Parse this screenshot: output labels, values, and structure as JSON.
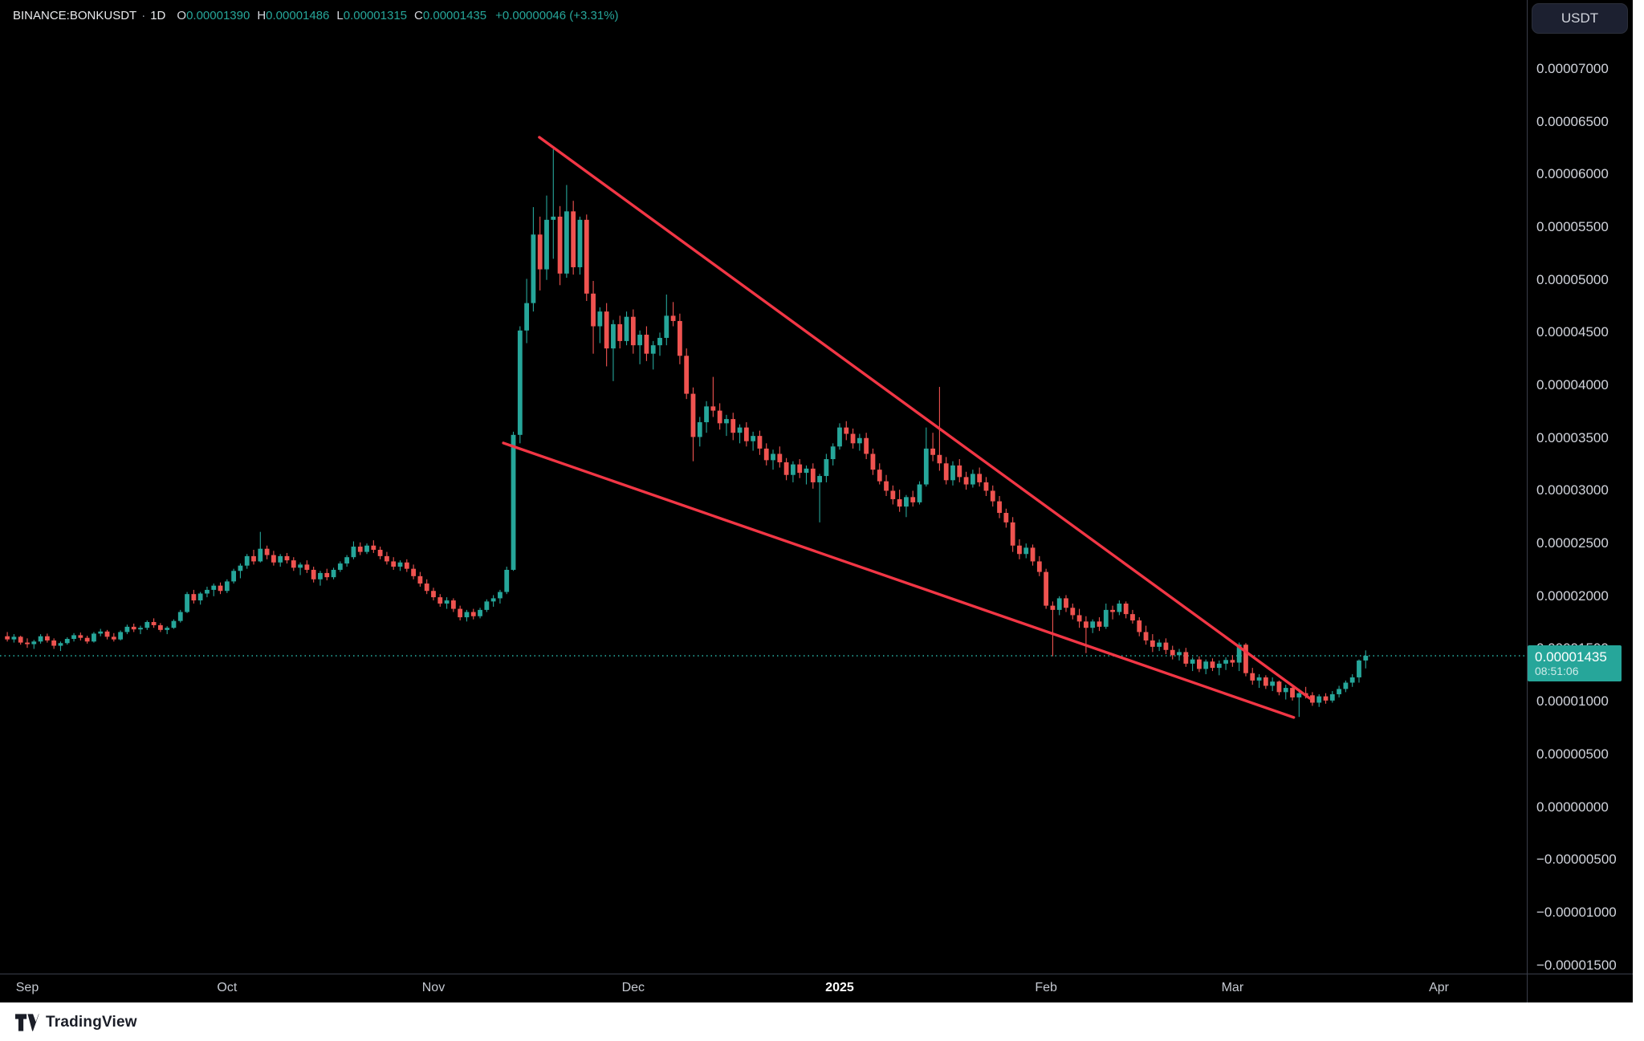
{
  "header": {
    "symbol": "BINANCE:BONKUSDT",
    "separator": "·",
    "timeframe": "1D",
    "ohlc": [
      {
        "label": "O",
        "value": "0.00001390"
      },
      {
        "label": "H",
        "value": "0.00001486"
      },
      {
        "label": "L",
        "value": "0.00001315"
      },
      {
        "label": "C",
        "value": "0.00001435"
      }
    ],
    "change": "+0.00000046 (+3.31%)"
  },
  "toolbar": {
    "currency_button": "USDT"
  },
  "price_label": {
    "price": "0.00001435",
    "countdown": "08:51:06"
  },
  "footer": {
    "logo_text": "TradingView"
  },
  "colors": {
    "up": "#26a69a",
    "down": "#ef5350",
    "trendline": "#f23645",
    "current_price_line": "#26a69a",
    "axis_text": "#d1d4dc",
    "background": "#000000"
  },
  "chart_data": {
    "type": "candlestick",
    "title": "BINANCE:BONKUSDT 1D",
    "ylabel": "Price (USDT)",
    "value_scale_note": "candle values are price * 1e8",
    "y_axis": {
      "min": -1500,
      "max": 7000,
      "tick_step": 500,
      "grid": false
    },
    "y_tick_values": [
      7000,
      6500,
      6000,
      5500,
      5000,
      4500,
      4000,
      3500,
      3000,
      2500,
      2000,
      1500,
      1000,
      500,
      0,
      -500,
      -1000,
      -1500
    ],
    "current_price": 1435,
    "x_ticks": [
      {
        "label": "Sep",
        "index": 3,
        "bold": false
      },
      {
        "label": "Oct",
        "index": 33,
        "bold": false
      },
      {
        "label": "Nov",
        "index": 64,
        "bold": false
      },
      {
        "label": "Dec",
        "index": 94,
        "bold": false
      },
      {
        "label": "2025",
        "index": 125,
        "bold": true
      },
      {
        "label": "Feb",
        "index": 156,
        "bold": false
      },
      {
        "label": "Mar",
        "index": 184,
        "bold": false
      },
      {
        "label": "Apr",
        "index": 215,
        "bold": false
      }
    ],
    "trendlines": [
      {
        "i1": 79.9,
        "p1": 6353,
        "i2": 195.6,
        "p2": 1032
      },
      {
        "i1": 74.5,
        "p1": 3453,
        "i2": 193.2,
        "p2": 850
      }
    ],
    "start_date": "2024-08-29",
    "candles": [
      [
        1620,
        1660,
        1570,
        1590
      ],
      [
        1590,
        1640,
        1560,
        1615
      ],
      [
        1615,
        1625,
        1540,
        1560
      ],
      [
        1560,
        1600,
        1510,
        1545
      ],
      [
        1545,
        1585,
        1500,
        1570
      ],
      [
        1570,
        1640,
        1550,
        1620
      ],
      [
        1620,
        1645,
        1560,
        1580
      ],
      [
        1580,
        1600,
        1500,
        1530
      ],
      [
        1530,
        1570,
        1480,
        1555
      ],
      [
        1555,
        1610,
        1540,
        1595
      ],
      [
        1595,
        1650,
        1570,
        1630
      ],
      [
        1630,
        1655,
        1580,
        1605
      ],
      [
        1605,
        1625,
        1550,
        1570
      ],
      [
        1570,
        1660,
        1560,
        1645
      ],
      [
        1645,
        1690,
        1620,
        1665
      ],
      [
        1665,
        1680,
        1590,
        1615
      ],
      [
        1615,
        1650,
        1570,
        1590
      ],
      [
        1590,
        1675,
        1580,
        1660
      ],
      [
        1660,
        1730,
        1640,
        1710
      ],
      [
        1710,
        1740,
        1660,
        1685
      ],
      [
        1685,
        1720,
        1640,
        1700
      ],
      [
        1700,
        1770,
        1680,
        1755
      ],
      [
        1755,
        1790,
        1700,
        1725
      ],
      [
        1725,
        1745,
        1660,
        1680
      ],
      [
        1680,
        1715,
        1640,
        1700
      ],
      [
        1700,
        1780,
        1690,
        1765
      ],
      [
        1765,
        1870,
        1750,
        1850
      ],
      [
        1850,
        2040,
        1840,
        2020
      ],
      [
        2020,
        2060,
        1930,
        1960
      ],
      [
        1960,
        2040,
        1920,
        2025
      ],
      [
        2025,
        2090,
        1990,
        2060
      ],
      [
        2060,
        2120,
        2000,
        2100
      ],
      [
        2100,
        2130,
        2020,
        2050
      ],
      [
        2050,
        2160,
        2030,
        2140
      ],
      [
        2140,
        2260,
        2120,
        2240
      ],
      [
        2240,
        2310,
        2170,
        2290
      ],
      [
        2290,
        2400,
        2260,
        2380
      ],
      [
        2380,
        2440,
        2300,
        2330
      ],
      [
        2330,
        2610,
        2320,
        2450
      ],
      [
        2450,
        2480,
        2350,
        2390
      ],
      [
        2390,
        2430,
        2290,
        2320
      ],
      [
        2320,
        2400,
        2280,
        2380
      ],
      [
        2380,
        2410,
        2310,
        2340
      ],
      [
        2340,
        2370,
        2240,
        2270
      ],
      [
        2270,
        2320,
        2200,
        2300
      ],
      [
        2300,
        2340,
        2220,
        2250
      ],
      [
        2250,
        2280,
        2130,
        2160
      ],
      [
        2160,
        2240,
        2100,
        2220
      ],
      [
        2220,
        2260,
        2150,
        2180
      ],
      [
        2180,
        2270,
        2160,
        2250
      ],
      [
        2250,
        2330,
        2230,
        2310
      ],
      [
        2310,
        2390,
        2280,
        2370
      ],
      [
        2370,
        2520,
        2350,
        2470
      ],
      [
        2470,
        2510,
        2390,
        2420
      ],
      [
        2420,
        2500,
        2400,
        2480
      ],
      [
        2480,
        2530,
        2410,
        2440
      ],
      [
        2440,
        2470,
        2350,
        2380
      ],
      [
        2380,
        2420,
        2300,
        2330
      ],
      [
        2330,
        2370,
        2250,
        2280
      ],
      [
        2280,
        2340,
        2240,
        2320
      ],
      [
        2320,
        2350,
        2230,
        2260
      ],
      [
        2260,
        2300,
        2160,
        2190
      ],
      [
        2190,
        2230,
        2090,
        2120
      ],
      [
        2120,
        2160,
        2020,
        2050
      ],
      [
        2050,
        2080,
        1960,
        1990
      ],
      [
        1990,
        2020,
        1900,
        1930
      ],
      [
        1930,
        1990,
        1880,
        1960
      ],
      [
        1960,
        1980,
        1850,
        1880
      ],
      [
        1880,
        1910,
        1770,
        1800
      ],
      [
        1800,
        1870,
        1760,
        1850
      ],
      [
        1850,
        1880,
        1780,
        1810
      ],
      [
        1810,
        1890,
        1790,
        1870
      ],
      [
        1870,
        1970,
        1850,
        1950
      ],
      [
        1950,
        2010,
        1900,
        1980
      ],
      [
        1980,
        2060,
        1930,
        2040
      ],
      [
        2040,
        2280,
        2020,
        2250
      ],
      [
        2250,
        3560,
        2240,
        3530
      ],
      [
        3530,
        4560,
        3450,
        4520
      ],
      [
        4520,
        5010,
        4400,
        4780
      ],
      [
        4780,
        5690,
        4700,
        5430
      ],
      [
        5430,
        5600,
        4900,
        5100
      ],
      [
        5100,
        5800,
        5000,
        5570
      ],
      [
        5570,
        6240,
        5200,
        5600
      ],
      [
        5600,
        5700,
        4950,
        5060
      ],
      [
        5060,
        5900,
        5020,
        5650
      ],
      [
        5650,
        5750,
        5050,
        5120
      ],
      [
        5120,
        5600,
        5050,
        5570
      ],
      [
        5570,
        5620,
        4800,
        4870
      ],
      [
        4870,
        4990,
        4300,
        4560
      ],
      [
        4560,
        4740,
        4400,
        4700
      ],
      [
        4700,
        4780,
        4180,
        4350
      ],
      [
        4350,
        4620,
        4040,
        4580
      ],
      [
        4580,
        4660,
        4350,
        4420
      ],
      [
        4420,
        4700,
        4380,
        4650
      ],
      [
        4650,
        4720,
        4300,
        4380
      ],
      [
        4380,
        4520,
        4200,
        4480
      ],
      [
        4480,
        4560,
        4230,
        4300
      ],
      [
        4300,
        4420,
        4150,
        4380
      ],
      [
        4380,
        4500,
        4280,
        4450
      ],
      [
        4450,
        4861,
        4380,
        4660
      ],
      [
        4660,
        4790,
        4560,
        4610
      ],
      [
        4610,
        4680,
        4200,
        4280
      ],
      [
        4280,
        4350,
        3870,
        3920
      ],
      [
        3920,
        3980,
        3280,
        3510
      ],
      [
        3510,
        3700,
        3420,
        3650
      ],
      [
        3650,
        3850,
        3550,
        3800
      ],
      [
        3800,
        4080,
        3700,
        3760
      ],
      [
        3760,
        3830,
        3580,
        3640
      ],
      [
        3640,
        3720,
        3520,
        3680
      ],
      [
        3680,
        3740,
        3480,
        3550
      ],
      [
        3550,
        3630,
        3450,
        3600
      ],
      [
        3600,
        3650,
        3420,
        3470
      ],
      [
        3470,
        3560,
        3380,
        3520
      ],
      [
        3520,
        3570,
        3340,
        3400
      ],
      [
        3400,
        3450,
        3240,
        3290
      ],
      [
        3290,
        3390,
        3200,
        3350
      ],
      [
        3350,
        3420,
        3220,
        3270
      ],
      [
        3270,
        3310,
        3100,
        3150
      ],
      [
        3150,
        3280,
        3080,
        3250
      ],
      [
        3250,
        3300,
        3120,
        3170
      ],
      [
        3170,
        3240,
        3060,
        3210
      ],
      [
        3210,
        3260,
        3020,
        3080
      ],
      [
        3080,
        3160,
        2700,
        3140
      ],
      [
        3140,
        3350,
        3080,
        3300
      ],
      [
        3300,
        3450,
        3240,
        3420
      ],
      [
        3420,
        3640,
        3390,
        3600
      ],
      [
        3600,
        3660,
        3480,
        3540
      ],
      [
        3540,
        3590,
        3400,
        3450
      ],
      [
        3450,
        3540,
        3380,
        3500
      ],
      [
        3500,
        3550,
        3300,
        3350
      ],
      [
        3350,
        3400,
        3150,
        3200
      ],
      [
        3200,
        3260,
        3060,
        3090
      ],
      [
        3090,
        3150,
        2950,
        3000
      ],
      [
        3000,
        3050,
        2870,
        2920
      ],
      [
        2920,
        3010,
        2800,
        2850
      ],
      [
        2850,
        2960,
        2750,
        2940
      ],
      [
        2940,
        3000,
        2850,
        2890
      ],
      [
        2890,
        3090,
        2870,
        3060
      ],
      [
        3060,
        3600,
        3040,
        3400
      ],
      [
        3400,
        3550,
        3280,
        3340
      ],
      [
        3340,
        3985,
        3190,
        3260
      ],
      [
        3260,
        3320,
        3060,
        3100
      ],
      [
        3100,
        3280,
        3050,
        3240
      ],
      [
        3240,
        3300,
        3080,
        3130
      ],
      [
        3130,
        3180,
        3010,
        3060
      ],
      [
        3060,
        3200,
        3030,
        3160
      ],
      [
        3160,
        3220,
        3040,
        3080
      ],
      [
        3080,
        3130,
        2950,
        3000
      ],
      [
        3000,
        3050,
        2850,
        2900
      ],
      [
        2900,
        2950,
        2740,
        2790
      ],
      [
        2790,
        2830,
        2650,
        2700
      ],
      [
        2700,
        2750,
        2420,
        2480
      ],
      [
        2480,
        2540,
        2350,
        2400
      ],
      [
        2400,
        2500,
        2360,
        2460
      ],
      [
        2460,
        2490,
        2290,
        2330
      ],
      [
        2330,
        2380,
        2190,
        2230
      ],
      [
        2230,
        2260,
        1880,
        1910
      ],
      [
        1910,
        1950,
        1430,
        1870
      ],
      [
        1870,
        2000,
        1820,
        1980
      ],
      [
        1980,
        2010,
        1850,
        1890
      ],
      [
        1890,
        1930,
        1780,
        1820
      ],
      [
        1820,
        1880,
        1700,
        1760
      ],
      [
        1760,
        1810,
        1460,
        1700
      ],
      [
        1700,
        1780,
        1650,
        1760
      ],
      [
        1760,
        1800,
        1670,
        1710
      ],
      [
        1710,
        1930,
        1690,
        1870
      ],
      [
        1870,
        1910,
        1780,
        1850
      ],
      [
        1850,
        1960,
        1820,
        1930
      ],
      [
        1930,
        1950,
        1790,
        1830
      ],
      [
        1830,
        1870,
        1740,
        1770
      ],
      [
        1770,
        1800,
        1620,
        1660
      ],
      [
        1660,
        1720,
        1540,
        1580
      ],
      [
        1580,
        1640,
        1470,
        1520
      ],
      [
        1520,
        1590,
        1480,
        1560
      ],
      [
        1560,
        1600,
        1450,
        1490
      ],
      [
        1490,
        1530,
        1400,
        1440
      ],
      [
        1440,
        1500,
        1390,
        1470
      ],
      [
        1470,
        1510,
        1330,
        1360
      ],
      [
        1360,
        1420,
        1290,
        1400
      ],
      [
        1400,
        1430,
        1280,
        1310
      ],
      [
        1310,
        1400,
        1260,
        1380
      ],
      [
        1380,
        1410,
        1290,
        1320
      ],
      [
        1320,
        1390,
        1250,
        1360
      ],
      [
        1360,
        1420,
        1300,
        1395
      ],
      [
        1395,
        1440,
        1330,
        1370
      ],
      [
        1370,
        1560,
        1290,
        1540
      ],
      [
        1540,
        1555,
        1240,
        1270
      ],
      [
        1270,
        1320,
        1160,
        1200
      ],
      [
        1200,
        1260,
        1130,
        1230
      ],
      [
        1230,
        1250,
        1120,
        1150
      ],
      [
        1150,
        1230,
        1100,
        1190
      ],
      [
        1190,
        1200,
        1060,
        1090
      ],
      [
        1090,
        1160,
        1020,
        1130
      ],
      [
        1130,
        1150,
        1010,
        1040
      ],
      [
        1040,
        1120,
        855,
        1080
      ],
      [
        1080,
        1140,
        1030,
        1060
      ],
      [
        1060,
        1090,
        960,
        990
      ],
      [
        990,
        1070,
        950,
        1050
      ],
      [
        1050,
        1080,
        980,
        1010
      ],
      [
        1010,
        1100,
        990,
        1070
      ],
      [
        1070,
        1150,
        1040,
        1120
      ],
      [
        1120,
        1200,
        1090,
        1180
      ],
      [
        1180,
        1260,
        1140,
        1230
      ],
      [
        1230,
        1400,
        1180,
        1390
      ],
      [
        1390,
        1486,
        1315,
        1435
      ]
    ]
  }
}
